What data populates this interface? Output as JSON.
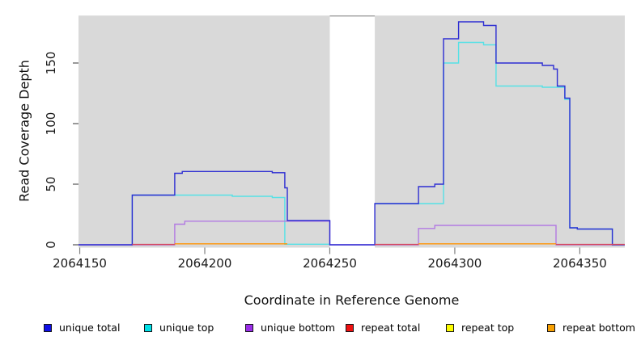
{
  "figure": {
    "background": "#ffffff"
  },
  "chart_data": {
    "type": "line",
    "subtype": "step-coverage-plot",
    "title": "",
    "xlabel": "Coordinate in Reference Genome",
    "ylabel": "Read Coverage Depth",
    "xlim": [
      2064149.5,
      2064368
    ],
    "ylim": [
      0,
      189
    ],
    "x_ticks": [
      2064150,
      2064200,
      2064250,
      2064300,
      2064350
    ],
    "y_ticks": [
      0,
      50,
      100,
      150
    ],
    "grid": false,
    "plot_bg": "#d9d9d9",
    "no_data_region": {
      "x0": 2064250,
      "x1": 2064268,
      "color": "#ffffff"
    },
    "legend_position": "bottom",
    "draw_order": [
      1,
      2,
      0,
      3,
      4,
      5
    ],
    "series": [
      {
        "name": "unique total",
        "line_color": "#2d2dd2",
        "legend_color": "#0f0fe6",
        "segments": [
          {
            "steps": [
              [
                2064149.5,
                0
              ],
              [
                2064171,
                41
              ],
              [
                2064188,
                59
              ],
              [
                2064191,
                60.5
              ],
              [
                2064227,
                59.5
              ],
              [
                2064232,
                47
              ],
              [
                2064233,
                20
              ],
              [
                2064250,
                0
              ],
              [
                2064268,
                34
              ],
              [
                2064285.5,
                48
              ],
              [
                2064292,
                50
              ],
              [
                2064295.5,
                170
              ],
              [
                2064301.5,
                184
              ],
              [
                2064311.5,
                181
              ],
              [
                2064316.5,
                150
              ],
              [
                2064335,
                148
              ],
              [
                2064339.5,
                145
              ],
              [
                2064341,
                131
              ],
              [
                2064344,
                121
              ],
              [
                2064346,
                14
              ],
              [
                2064349,
                13
              ],
              [
                2064363,
                0
              ]
            ],
            "end": 2064368
          }
        ]
      },
      {
        "name": "unique top",
        "line_color": "#55e1e6",
        "legend_color": "#00e0e6",
        "segments": [
          {
            "steps": [
              [
                2064171,
                0
              ],
              [
                2064171,
                41
              ],
              [
                2064211,
                40
              ],
              [
                2064227,
                39
              ],
              [
                2064232,
                0.5
              ]
            ],
            "end": 2064250
          },
          {
            "steps": [
              [
                2064268,
                34
              ],
              [
                2064295.5,
                150
              ],
              [
                2064301.5,
                167
              ],
              [
                2064311.5,
                165
              ],
              [
                2064316.5,
                131
              ],
              [
                2064335,
                130
              ],
              [
                2064344,
                120
              ],
              [
                2064346,
                14
              ],
              [
                2064349,
                13
              ],
              [
                2064363,
                0
              ]
            ],
            "end": 2064368
          }
        ]
      },
      {
        "name": "unique bottom",
        "line_color": "#b27ae2",
        "legend_color": "#9a2de8",
        "segments": [
          {
            "steps": [
              [
                2064149.5,
                0
              ],
              [
                2064188,
                17
              ],
              [
                2064192,
                19.5
              ],
              [
                2064250,
                0
              ],
              [
                2064285.5,
                13.5
              ],
              [
                2064292,
                16
              ],
              [
                2064340.5,
                0
              ]
            ],
            "end": 2064368
          }
        ]
      },
      {
        "name": "repeat total",
        "line_color": "#d6475e",
        "legend_color": "#ee1111",
        "segments": [
          {
            "steps": [
              [
                2064171,
                0.3
              ]
            ],
            "end": 2064188
          },
          {
            "steps": [
              [
                2064268,
                0.3
              ]
            ],
            "end": 2064285.5
          },
          {
            "steps": [
              [
                2064340.5,
                0.3
              ]
            ],
            "end": 2064368
          }
        ]
      },
      {
        "name": "repeat top",
        "line_color": "#f0f000",
        "legend_color": "#fbfb00",
        "segments": []
      },
      {
        "name": "repeat bottom",
        "line_color": "#ff9303",
        "legend_color": "#f7a002",
        "segments": [
          {
            "steps": [
              [
                2064188,
                0.8
              ]
            ],
            "end": 2064233
          },
          {
            "steps": [
              [
                2064285.5,
                0.8
              ]
            ],
            "end": 2064340.5
          }
        ]
      }
    ]
  }
}
